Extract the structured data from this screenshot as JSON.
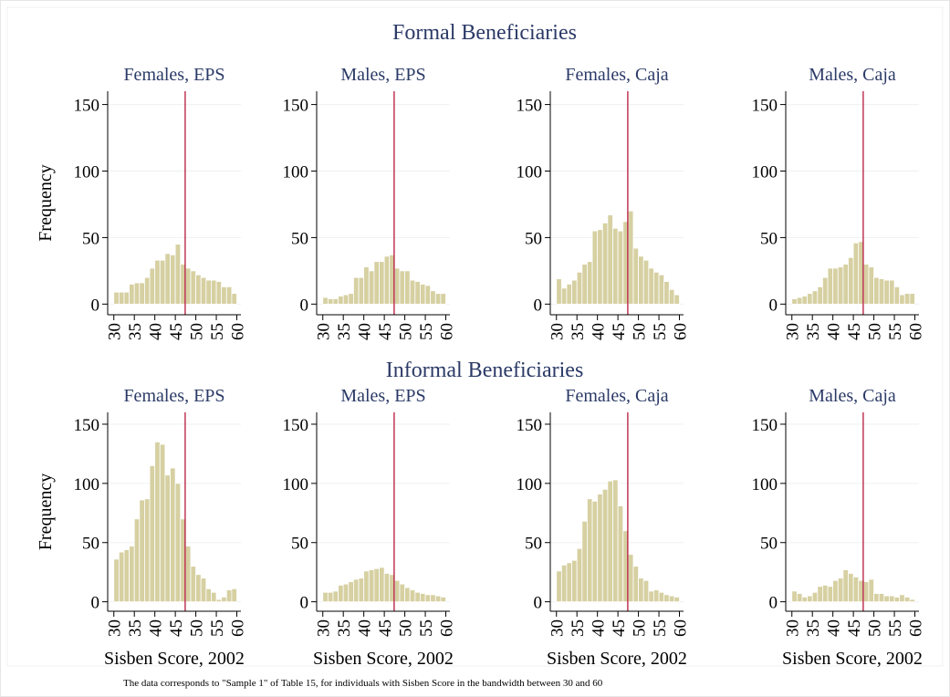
{
  "row_titles": [
    "Formal Beneficiaries",
    "Informal Beneficiaries"
  ],
  "note": "The data corresponds to \"Sample 1\" of Table 15, for individuals with Sisben Score in the bandwidth between 30 and 60",
  "chart_data": [
    {
      "type": "histogram",
      "title": "Females, EPS",
      "y_label": "Frequency",
      "color": "#d6d0a2",
      "vline": 47.4,
      "vline_color": "#b5173c",
      "grid": true,
      "bins": [
        30,
        31.25,
        32.5,
        33.75,
        35,
        36.25,
        37.5,
        38.75,
        40,
        41.25,
        42.5,
        43.75,
        45,
        46.25,
        47.5,
        48.75,
        50,
        51.25,
        52.5,
        53.75,
        55,
        56.25,
        57.5,
        58.75,
        60
      ],
      "values": [
        9,
        9,
        9,
        15,
        16,
        16,
        20,
        27,
        33,
        33,
        38,
        37,
        45,
        30,
        27,
        25,
        22,
        20,
        18,
        18,
        17,
        13,
        13,
        8
      ],
      "xlim": [
        28.5,
        61
      ],
      "ylim": [
        -8,
        160
      ],
      "xticks": [
        30,
        35,
        40,
        45,
        50,
        55,
        60
      ],
      "yticks": [
        0,
        50,
        100,
        150
      ]
    },
    {
      "type": "histogram",
      "title": "Males, EPS",
      "color": "#d6d0a2",
      "vline": 47.4,
      "vline_color": "#b5173c",
      "grid": true,
      "bins": [
        30,
        31.25,
        32.5,
        33.75,
        35,
        36.25,
        37.5,
        38.75,
        40,
        41.25,
        42.5,
        43.75,
        45,
        46.25,
        47.5,
        48.75,
        50,
        51.25,
        52.5,
        53.75,
        55,
        56.25,
        57.5,
        58.75,
        60
      ],
      "values": [
        5,
        4,
        4,
        6,
        7,
        8,
        20,
        20,
        28,
        25,
        32,
        32,
        36,
        37,
        27,
        25,
        25,
        18,
        17,
        15,
        14,
        10,
        8,
        8
      ],
      "xlim": [
        28.5,
        61
      ],
      "ylim": [
        -8,
        160
      ],
      "xticks": [
        30,
        35,
        40,
        45,
        50,
        55,
        60
      ],
      "yticks": [
        0,
        50,
        100,
        150
      ]
    },
    {
      "type": "histogram",
      "title": "Females, Caja",
      "color": "#d6d0a2",
      "vline": 47.4,
      "vline_color": "#b5173c",
      "grid": true,
      "bins": [
        30,
        31.25,
        32.5,
        33.75,
        35,
        36.25,
        37.5,
        38.75,
        40,
        41.25,
        42.5,
        43.75,
        45,
        46.25,
        47.5,
        48.75,
        50,
        51.25,
        52.5,
        53.75,
        55,
        56.25,
        57.5,
        58.75,
        60
      ],
      "values": [
        19,
        12,
        15,
        18,
        24,
        30,
        32,
        55,
        56,
        61,
        67,
        57,
        55,
        62,
        70,
        42,
        36,
        33,
        27,
        24,
        22,
        17,
        11,
        7
      ],
      "xlim": [
        28.5,
        61
      ],
      "ylim": [
        -8,
        160
      ],
      "xticks": [
        30,
        35,
        40,
        45,
        50,
        55,
        60
      ],
      "yticks": [
        0,
        50,
        100,
        150
      ]
    },
    {
      "type": "histogram",
      "title": "Males, Caja",
      "color": "#d6d0a2",
      "vline": 47.4,
      "vline_color": "#b5173c",
      "grid": true,
      "bins": [
        30,
        31.25,
        32.5,
        33.75,
        35,
        36.25,
        37.5,
        38.75,
        40,
        41.25,
        42.5,
        43.75,
        45,
        46.25,
        47.5,
        48.75,
        50,
        51.25,
        52.5,
        53.75,
        55,
        56.25,
        57.5,
        58.75,
        60
      ],
      "values": [
        4,
        5,
        6,
        8,
        10,
        13,
        20,
        27,
        27,
        28,
        30,
        35,
        46,
        47,
        30,
        28,
        20,
        19,
        18,
        18,
        13,
        7,
        8,
        8
      ],
      "xlim": [
        28.5,
        61
      ],
      "ylim": [
        -8,
        160
      ],
      "xticks": [
        30,
        35,
        40,
        45,
        50,
        55,
        60
      ],
      "yticks": [
        0,
        50,
        100,
        150
      ]
    },
    {
      "type": "histogram",
      "title": "Females, EPS",
      "y_label": "Frequency",
      "x_label": "Sisben Score, 2002",
      "color": "#d6d0a2",
      "vline": 47.4,
      "vline_color": "#b5173c",
      "grid": true,
      "bins": [
        30,
        31.25,
        32.5,
        33.75,
        35,
        36.25,
        37.5,
        38.75,
        40,
        41.25,
        42.5,
        43.75,
        45,
        46.25,
        47.5,
        48.75,
        50,
        51.25,
        52.5,
        53.75,
        55,
        56.25,
        57.5,
        58.75,
        60
      ],
      "values": [
        36,
        42,
        44,
        47,
        70,
        86,
        87,
        115,
        135,
        133,
        107,
        113,
        100,
        70,
        47,
        30,
        23,
        20,
        11,
        8,
        2,
        4,
        10,
        11
      ],
      "xlim": [
        28.5,
        61
      ],
      "ylim": [
        -8,
        160
      ],
      "xticks": [
        30,
        35,
        40,
        45,
        50,
        55,
        60
      ],
      "yticks": [
        0,
        50,
        100,
        150
      ]
    },
    {
      "type": "histogram",
      "title": "Males, EPS",
      "x_label": "Sisben Score, 2002",
      "color": "#d6d0a2",
      "vline": 47.4,
      "vline_color": "#b5173c",
      "grid": true,
      "bins": [
        30,
        31.25,
        32.5,
        33.75,
        35,
        36.25,
        37.5,
        38.75,
        40,
        41.25,
        42.5,
        43.75,
        45,
        46.25,
        47.5,
        48.75,
        50,
        51.25,
        52.5,
        53.75,
        55,
        56.25,
        57.5,
        58.75,
        60
      ],
      "values": [
        8,
        8,
        9,
        14,
        15,
        17,
        19,
        20,
        26,
        27,
        28,
        29,
        24,
        23,
        18,
        15,
        12,
        10,
        8,
        7,
        6,
        6,
        5,
        4
      ],
      "xlim": [
        28.5,
        61
      ],
      "ylim": [
        -8,
        160
      ],
      "xticks": [
        30,
        35,
        40,
        45,
        50,
        55,
        60
      ],
      "yticks": [
        0,
        50,
        100,
        150
      ]
    },
    {
      "type": "histogram",
      "title": "Females, Caja",
      "x_label": "Sisben Score, 2002",
      "color": "#d6d0a2",
      "vline": 47.4,
      "vline_color": "#b5173c",
      "grid": true,
      "bins": [
        30,
        31.25,
        32.5,
        33.75,
        35,
        36.25,
        37.5,
        38.75,
        40,
        41.25,
        42.5,
        43.75,
        45,
        46.25,
        47.5,
        48.75,
        50,
        51.25,
        52.5,
        53.75,
        55,
        56.25,
        57.5,
        58.75,
        60
      ],
      "values": [
        26,
        31,
        33,
        35,
        45,
        68,
        87,
        85,
        91,
        95,
        102,
        103,
        81,
        60,
        40,
        30,
        20,
        18,
        9,
        10,
        8,
        6,
        5,
        4
      ],
      "xlim": [
        28.5,
        61
      ],
      "ylim": [
        -8,
        160
      ],
      "xticks": [
        30,
        35,
        40,
        45,
        50,
        55,
        60
      ],
      "yticks": [
        0,
        50,
        100,
        150
      ]
    },
    {
      "type": "histogram",
      "title": "Males, Caja",
      "x_label": "Sisben Score, 2002",
      "color": "#d6d0a2",
      "vline": 47.4,
      "vline_color": "#b5173c",
      "grid": true,
      "bins": [
        30,
        31.25,
        32.5,
        33.75,
        35,
        36.25,
        37.5,
        38.75,
        40,
        41.25,
        42.5,
        43.75,
        45,
        46.25,
        47.5,
        48.75,
        50,
        51.25,
        52.5,
        53.75,
        55,
        56.25,
        57.5,
        58.75,
        60
      ],
      "values": [
        9,
        7,
        4,
        5,
        8,
        13,
        14,
        13,
        18,
        20,
        27,
        24,
        21,
        18,
        17,
        19,
        7,
        7,
        5,
        5,
        4,
        6,
        4,
        2
      ],
      "xlim": [
        28.5,
        61
      ],
      "ylim": [
        -8,
        160
      ],
      "xticks": [
        30,
        35,
        40,
        45,
        50,
        55,
        60
      ],
      "yticks": [
        0,
        50,
        100,
        150
      ]
    }
  ]
}
